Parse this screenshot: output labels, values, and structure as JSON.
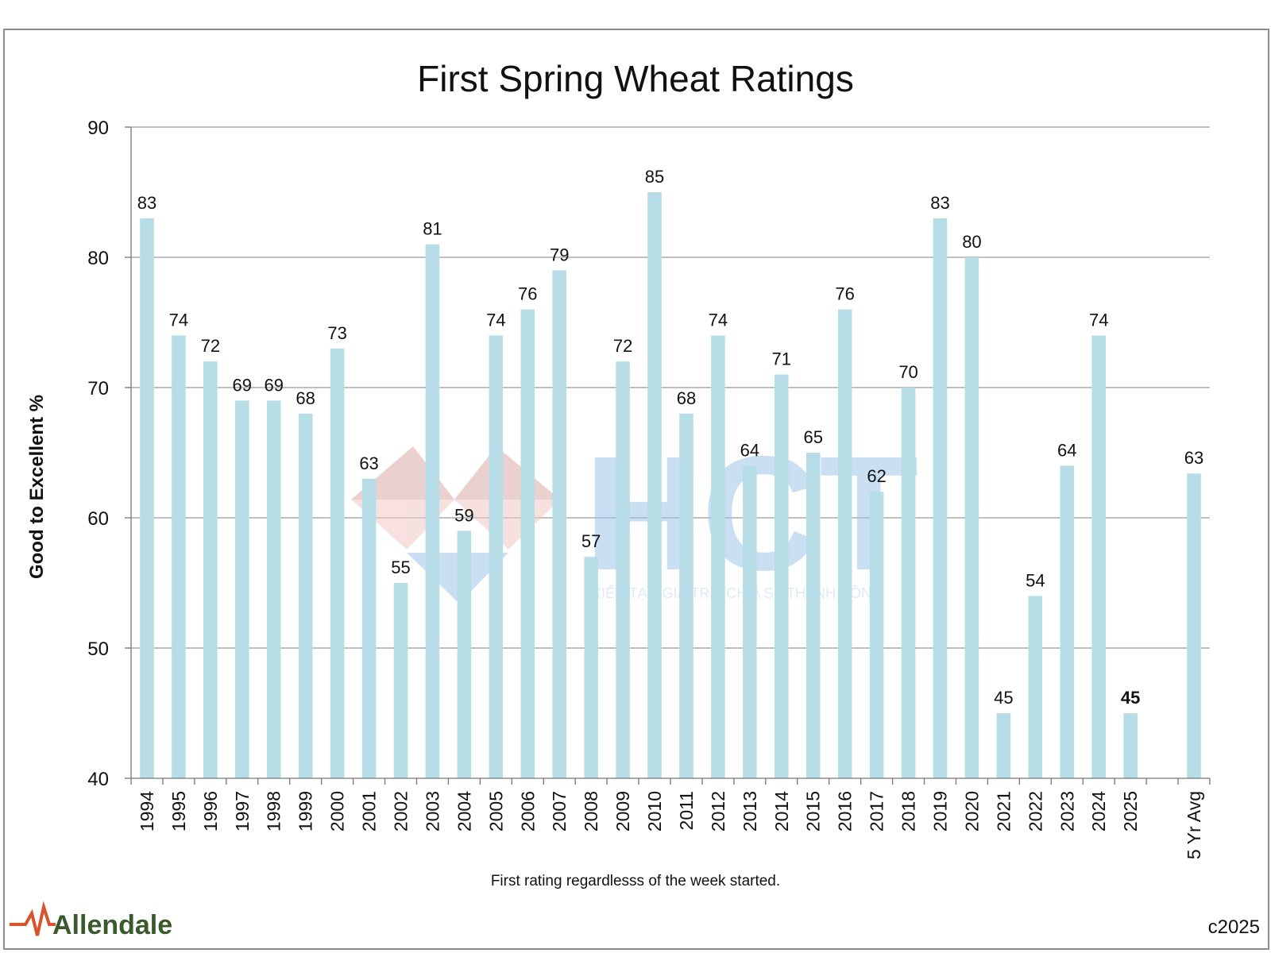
{
  "chart_data": {
    "type": "bar",
    "title": "First Spring Wheat Ratings",
    "ylabel": "Good to Excellent %",
    "xlabel": "",
    "ylim": [
      40,
      90
    ],
    "yticks": [
      40,
      50,
      60,
      70,
      80,
      90
    ],
    "grid": true,
    "bar_color": "#b7dde6",
    "categories": [
      "1994",
      "1995",
      "1996",
      "1997",
      "1998",
      "1999",
      "2000",
      "2001",
      "2002",
      "2003",
      "2004",
      "2005",
      "2006",
      "2007",
      "2008",
      "2009",
      "2010",
      "2011",
      "2012",
      "2013",
      "2014",
      "2015",
      "2016",
      "2017",
      "2018",
      "2019",
      "2020",
      "2021",
      "2022",
      "2023",
      "2024",
      "2025",
      "",
      "5 Yr Avg"
    ],
    "values": [
      83,
      74,
      72,
      69,
      69,
      68,
      73,
      63,
      55,
      81,
      59,
      74,
      76,
      79,
      57,
      72,
      85,
      68,
      74,
      64,
      71,
      65,
      76,
      62,
      70,
      83,
      80,
      45,
      54,
      64,
      74,
      45,
      null,
      63.4
    ],
    "labels": [
      "83",
      "74",
      "72",
      "69",
      "69",
      "68",
      "73",
      "63",
      "55",
      "81",
      "59",
      "74",
      "76",
      "79",
      "57",
      "72",
      "85",
      "68",
      "74",
      "64",
      "71",
      "65",
      "76",
      "62",
      "70",
      "83",
      "80",
      "45",
      "54",
      "64",
      "74",
      "45",
      "",
      "63"
    ],
    "bold_label_index": 31
  },
  "footnote": "First rating regardlesss of the week started.",
  "copyright": "c2025",
  "brand": {
    "name": "Allendale",
    "color": "#3a5a2c",
    "accent": "#d9532b"
  },
  "watermark": {
    "name": "HCT",
    "tagline": "KIẾN TẠO GIÁ TRỊ - CHIA SẺ THÀNH CÔNG"
  }
}
